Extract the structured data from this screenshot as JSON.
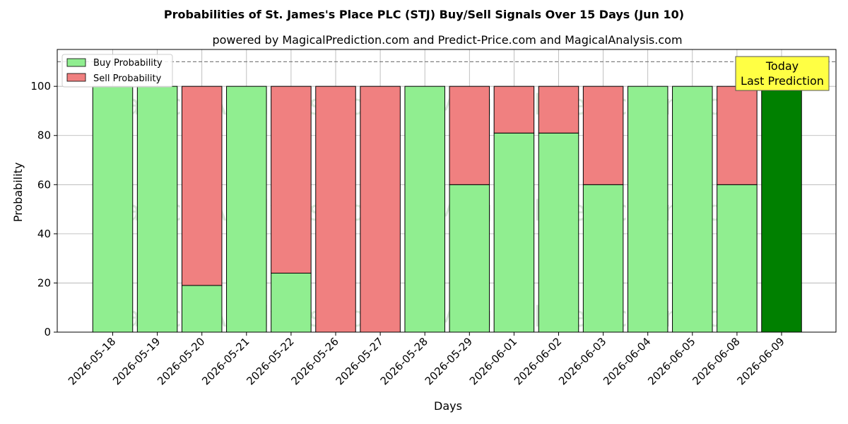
{
  "chart_data": {
    "type": "bar",
    "stacked": true,
    "title": "Probabilities of St. James's Place PLC (STJ) Buy/Sell Signals Over 15 Days (Jun 10)",
    "subtitle": "powered by MagicalPrediction.com and Predict-Price.com and MagicalAnalysis.com",
    "xlabel": "Days",
    "ylabel": "Probability",
    "ylim": [
      0,
      115
    ],
    "yticks": [
      0,
      20,
      40,
      60,
      80,
      100
    ],
    "grid": true,
    "legend_position": "top-left",
    "reference_line": 110,
    "categories": [
      "2026-05-18",
      "2026-05-19",
      "2026-05-20",
      "2026-05-21",
      "2026-05-22",
      "2026-05-26",
      "2026-05-27",
      "2026-05-28",
      "2026-05-29",
      "2026-06-01",
      "2026-06-02",
      "2026-06-03",
      "2026-06-04",
      "2026-06-05",
      "2026-06-08",
      "2026-06-09"
    ],
    "series": [
      {
        "name": "Buy Probability",
        "color": "#90ee90",
        "values": [
          100,
          100,
          19,
          100,
          24,
          0,
          0,
          100,
          60,
          81,
          81,
          60,
          100,
          100,
          60,
          100
        ]
      },
      {
        "name": "Sell Probability",
        "color": "#f08080",
        "values": [
          0,
          0,
          81,
          0,
          76,
          100,
          100,
          0,
          40,
          19,
          19,
          40,
          0,
          0,
          40,
          0
        ]
      }
    ],
    "highlight": {
      "index": 15,
      "color": "#008000",
      "label_lines": [
        "Today",
        "Last Prediction"
      ],
      "box_color": "#ffff44"
    },
    "watermarks": [
      "MagicalAnalysis.com",
      "MagicalPrediction.com"
    ]
  }
}
